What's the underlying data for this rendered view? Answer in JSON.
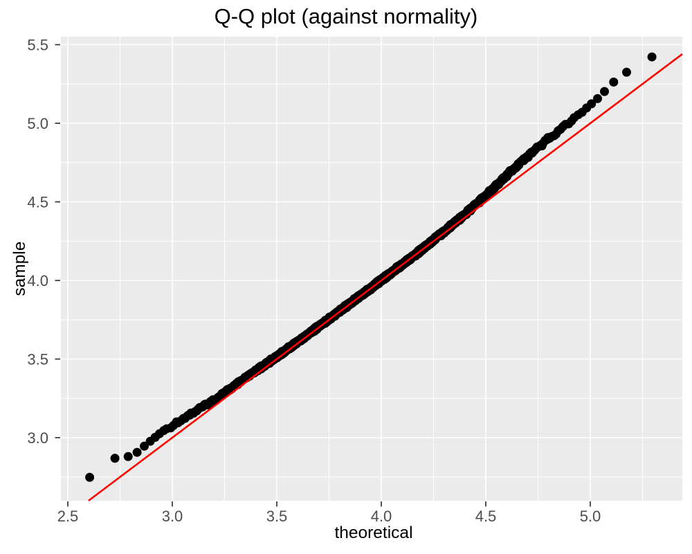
{
  "title": "Q-Q plot (against normality)",
  "x_axis": {
    "label": "theoretical",
    "tick_labels": [
      "2.5",
      "3.0",
      "3.5",
      "4.0",
      "4.5",
      "5.0"
    ],
    "tick_values": [
      2.5,
      3.0,
      3.5,
      4.0,
      4.5,
      5.0
    ]
  },
  "y_axis": {
    "label": "sample",
    "tick_labels": [
      "3.0",
      "3.5",
      "4.0",
      "4.5",
      "5.0",
      "5.5"
    ],
    "tick_values": [
      3.0,
      3.5,
      4.0,
      4.5,
      5.0,
      5.5
    ]
  },
  "chart_data": {
    "type": "scatter",
    "title": "Q-Q plot (against normality)",
    "xlabel": "theoretical",
    "ylabel": "sample",
    "xlim": [
      2.47,
      5.44
    ],
    "ylim": [
      2.6,
      5.55
    ],
    "grid": "white major and minor gridlines on gray panel, legend none",
    "qq_points": {
      "color": "#000000",
      "marker_radius_px": 6.5,
      "n": 1000,
      "theoretical_mean": 3.95,
      "theoretical_sd": 0.414,
      "band_anchors": [
        [
          2.605,
          2.745
        ],
        [
          2.7,
          2.862
        ],
        [
          2.73,
          2.872
        ],
        [
          2.79,
          2.878
        ],
        [
          2.83,
          2.905
        ],
        [
          2.87,
          2.95
        ],
        [
          2.91,
          2.995
        ],
        [
          2.95,
          3.035
        ],
        [
          3.0,
          3.08
        ],
        [
          3.1,
          3.16
        ],
        [
          3.2,
          3.24
        ],
        [
          3.3,
          3.33
        ],
        [
          3.4,
          3.425
        ],
        [
          3.5,
          3.515
        ],
        [
          3.6,
          3.61
        ],
        [
          3.7,
          3.707
        ],
        [
          3.8,
          3.805
        ],
        [
          3.9,
          3.903
        ],
        [
          4.0,
          4.002
        ],
        [
          4.1,
          4.102
        ],
        [
          4.2,
          4.203
        ],
        [
          4.3,
          4.31
        ],
        [
          4.4,
          4.42
        ],
        [
          4.5,
          4.54
        ],
        [
          4.6,
          4.67
        ],
        [
          4.7,
          4.79
        ],
        [
          4.8,
          4.9
        ],
        [
          4.9,
          5.005
        ],
        [
          4.95,
          5.06
        ],
        [
          5.0,
          5.115
        ],
        [
          5.05,
          5.175
        ],
        [
          5.1,
          5.25
        ],
        [
          5.16,
          5.31
        ],
        [
          5.22,
          5.37
        ],
        [
          5.295,
          5.42
        ]
      ]
    },
    "reference_line": {
      "equation": "y = x",
      "color": "#FF0000",
      "from": [
        2.6,
        2.6
      ],
      "to": [
        5.44,
        5.44
      ]
    },
    "colors": {
      "panel_bg": "#EBEBEB",
      "grid": "#FFFFFF",
      "axis_text": "#4D4D4D",
      "tick_mark": "#333333",
      "title_text": "#000000"
    }
  }
}
